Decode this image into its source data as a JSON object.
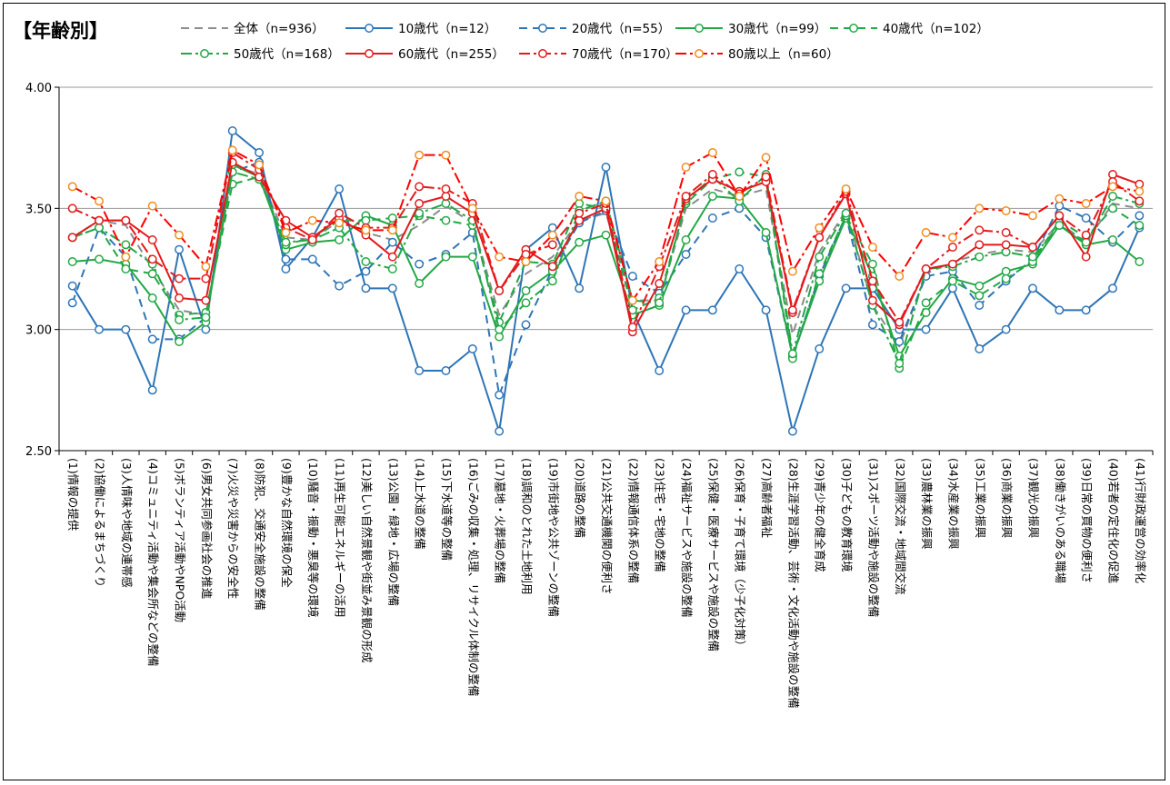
{
  "chart_data": {
    "type": "line",
    "title": "【年齢別】",
    "ylim": [
      2.5,
      4.0
    ],
    "yticks": [
      "4.00",
      "3.50",
      "3.00",
      "2.50"
    ],
    "grid": true,
    "legend_position": "top",
    "categories": [
      "(1)情報の提供",
      "(2)協働によるまちづくり",
      "(3)人情味や地域の連帯感",
      "(4)コミュニティ活動や集会所などの整備",
      "(5)ボランティア活動やNPO活動",
      "(6)男女共同参画社会の推進",
      "(7)火災や災害からの安全性",
      "(8)防犯、交通安全施設の整備",
      "(9)豊かな自然環境の保全",
      "(10)騒音・振動・悪臭等の環境",
      "(11)再生可能エネルギーの活用",
      "(12)美しい自然景観や街並み景観の形成",
      "(13)公園・緑地・広場の整備",
      "(14)上水道の整備",
      "(15)下水道等の整備",
      "(16)ごみの収集・処理、リサイクル体制の整備",
      "(17)墓地・火葬場の整備",
      "(18)調和のとれた土地利用",
      "(19)市街地や公共ゾーンの整備",
      "(20)道路の整備",
      "(21)公共交通機関の便利さ",
      "(22)情報通信体系の整備",
      "(23)住宅・宅地の整備",
      "(24)福祉サービスや施設の整備",
      "(25)保健・医療サービスや施設の整備",
      "(26)保育・子育て環境（少子化対策）",
      "(27)高齢者福祉",
      "(28)生涯学習活動、芸術・文化活動や施設の整備",
      "(29)青少年の健全育成",
      "(30)子どもの教育環境",
      "(31)スポーツ活動や施設の整備",
      "(32)国際交流・地域間交流",
      "(33)農林業の振興",
      "(34)水産業の振興",
      "(35)工業の振興",
      "(36)商業の振興",
      "(37)観光の振興",
      "(38)働きがいのある職場",
      "(39)日常の買物の便利さ",
      "(40)若者の定住化の促進",
      "(41)行財政運営の効率化"
    ],
    "series": [
      {
        "name": "全体（n=936）",
        "color": "#8c8c8c",
        "dash": "dash",
        "marker": "none",
        "legend_row": 0,
        "values": [
          3.38,
          3.45,
          3.43,
          3.25,
          3.08,
          3.06,
          3.68,
          3.64,
          3.38,
          3.37,
          3.45,
          3.4,
          3.37,
          3.43,
          3.51,
          3.44,
          3.06,
          3.23,
          3.3,
          3.45,
          3.48,
          3.12,
          3.12,
          3.5,
          3.58,
          3.55,
          3.58,
          2.98,
          3.32,
          3.49,
          3.1,
          2.93,
          3.23,
          3.28,
          3.31,
          3.33,
          3.32,
          3.44,
          3.36,
          3.52,
          3.5
        ]
      },
      {
        "name": "10歳代（n=12）",
        "color": "#2e75b6",
        "dash": "solid",
        "marker": "circle",
        "legend_row": 0,
        "values": [
          3.18,
          3.0,
          3.0,
          2.75,
          3.33,
          3.0,
          3.82,
          3.73,
          3.25,
          3.38,
          3.58,
          3.17,
          3.17,
          2.83,
          2.83,
          2.92,
          2.58,
          3.33,
          3.42,
          3.17,
          3.67,
          3.08,
          2.83,
          3.08,
          3.08,
          3.25,
          3.08,
          2.58,
          2.92,
          3.17,
          3.17,
          3.0,
          3.0,
          3.17,
          2.92,
          3.0,
          3.17,
          3.08,
          3.08,
          3.17,
          3.42
        ]
      },
      {
        "name": "20歳代（n=55）",
        "color": "#2e75b6",
        "dash": "dash",
        "marker": "circle",
        "legend_row": 0,
        "values": [
          3.11,
          3.42,
          3.3,
          2.96,
          2.96,
          3.05,
          3.65,
          3.69,
          3.29,
          3.29,
          3.18,
          3.24,
          3.36,
          3.27,
          3.31,
          3.4,
          2.73,
          3.02,
          3.25,
          3.44,
          3.49,
          3.22,
          3.15,
          3.31,
          3.46,
          3.5,
          3.38,
          2.89,
          3.22,
          3.47,
          3.02,
          2.95,
          3.22,
          3.24,
          3.1,
          3.2,
          3.29,
          3.51,
          3.46,
          3.36,
          3.47
        ]
      },
      {
        "name": "30歳代（n=99）",
        "color": "#22a845",
        "dash": "solid",
        "marker": "circle",
        "legend_row": 0,
        "values": [
          3.28,
          3.29,
          3.27,
          3.13,
          2.95,
          3.03,
          3.68,
          3.63,
          3.33,
          3.36,
          3.37,
          3.47,
          3.43,
          3.19,
          3.3,
          3.3,
          2.97,
          3.16,
          3.24,
          3.36,
          3.39,
          3.06,
          3.1,
          3.37,
          3.55,
          3.54,
          3.4,
          2.89,
          3.2,
          3.46,
          3.22,
          2.89,
          3.07,
          3.21,
          3.18,
          3.24,
          3.27,
          3.43,
          3.35,
          3.37,
          3.28
        ]
      },
      {
        "name": "40歳代（n=102）",
        "color": "#22a845",
        "dash": "dash",
        "marker": "circle",
        "legend_row": 0,
        "values": [
          3.38,
          3.42,
          3.25,
          3.23,
          3.06,
          3.07,
          3.6,
          3.63,
          3.35,
          3.38,
          3.45,
          3.45,
          3.46,
          3.47,
          3.45,
          3.43,
          3.03,
          3.28,
          3.27,
          3.52,
          3.5,
          3.08,
          3.13,
          3.52,
          3.62,
          3.65,
          3.63,
          2.88,
          3.23,
          3.47,
          3.27,
          2.84,
          3.11,
          3.2,
          3.14,
          3.21,
          3.28,
          3.45,
          3.38,
          3.5,
          3.43
        ]
      },
      {
        "name": "50歳代（n=168）",
        "color": "#22a845",
        "dash": "dashdot",
        "marker": "circle",
        "legend_row": 1,
        "values": [
          3.38,
          3.42,
          3.35,
          3.27,
          3.04,
          3.05,
          3.65,
          3.62,
          3.36,
          3.37,
          3.42,
          3.28,
          3.25,
          3.48,
          3.52,
          3.45,
          3.0,
          3.11,
          3.2,
          3.49,
          3.53,
          3.12,
          3.11,
          3.53,
          3.63,
          3.53,
          3.64,
          2.9,
          3.3,
          3.48,
          3.1,
          2.86,
          3.25,
          3.26,
          3.3,
          3.32,
          3.3,
          3.43,
          3.36,
          3.55,
          3.52
        ]
      },
      {
        "name": "60歳代（n=255）",
        "color": "#e31a1c",
        "dash": "solid",
        "marker": "circle",
        "legend_row": 1,
        "values": [
          3.38,
          3.45,
          3.45,
          3.37,
          3.13,
          3.12,
          3.69,
          3.63,
          3.45,
          3.38,
          3.46,
          3.39,
          3.3,
          3.52,
          3.55,
          3.48,
          3.16,
          3.33,
          3.26,
          3.45,
          3.5,
          2.99,
          3.19,
          3.54,
          3.62,
          3.57,
          3.61,
          3.07,
          3.38,
          3.56,
          3.12,
          3.02,
          3.25,
          3.27,
          3.35,
          3.35,
          3.34,
          3.47,
          3.3,
          3.64,
          3.6
        ]
      },
      {
        "name": "70歳代（n=170）",
        "color": "#e31a1c",
        "dash": "dashdot",
        "marker": "circle",
        "legend_row": 1,
        "values": [
          3.5,
          3.45,
          3.45,
          3.29,
          3.21,
          3.21,
          3.73,
          3.66,
          3.42,
          3.37,
          3.48,
          3.42,
          3.42,
          3.59,
          3.58,
          3.52,
          3.16,
          3.31,
          3.35,
          3.48,
          3.52,
          3.01,
          3.26,
          3.55,
          3.64,
          3.56,
          3.63,
          3.08,
          3.38,
          3.57,
          3.2,
          3.03,
          3.25,
          3.34,
          3.41,
          3.4,
          3.34,
          3.47,
          3.39,
          3.61,
          3.53
        ]
      },
      {
        "name": "80歳以上（n=60）",
        "color": "#ff0000",
        "dash": "dashdot",
        "marker": "circle-orange",
        "legend_row": 1,
        "values": [
          3.59,
          3.53,
          3.3,
          3.51,
          3.39,
          3.26,
          3.74,
          3.68,
          3.4,
          3.45,
          3.44,
          3.41,
          3.41,
          3.72,
          3.72,
          3.5,
          3.3,
          3.28,
          3.39,
          3.55,
          3.53,
          3.12,
          3.28,
          3.67,
          3.73,
          3.55,
          3.71,
          3.24,
          3.42,
          3.58,
          3.34,
          3.22,
          3.4,
          3.38,
          3.5,
          3.49,
          3.47,
          3.54,
          3.52,
          3.59,
          3.57
        ]
      }
    ]
  }
}
